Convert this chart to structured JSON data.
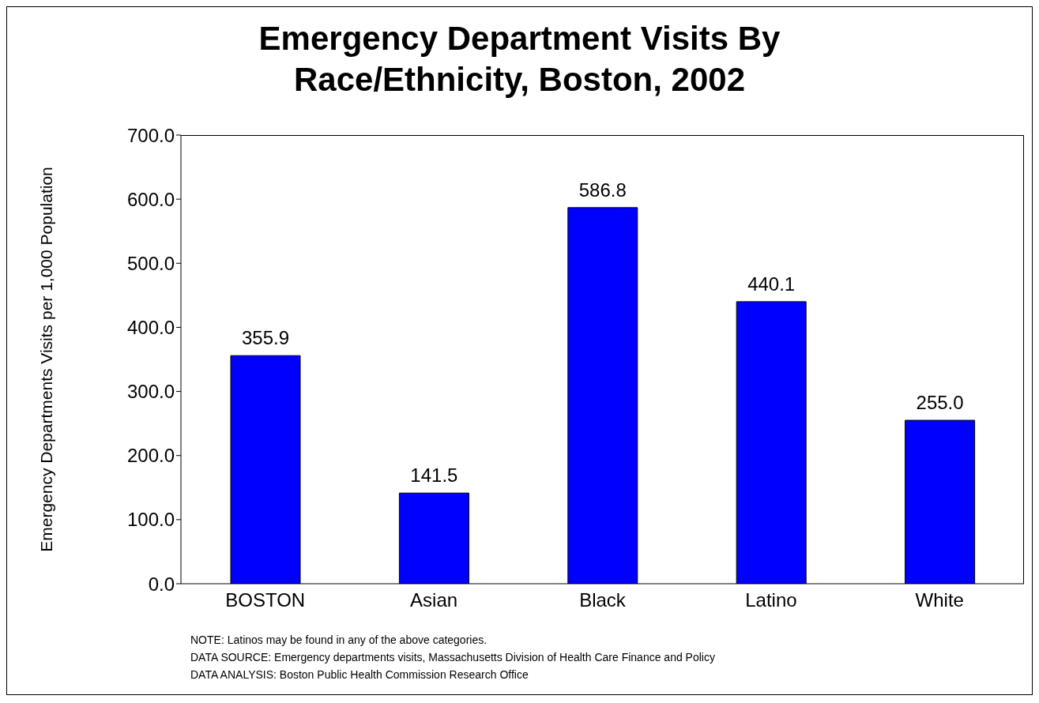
{
  "chart_data": {
    "type": "bar",
    "title": "Emergency Department Visits By Race/Ethnicity, Boston, 2002",
    "ylabel": "Emergency Departments Visits per 1,000 Population",
    "categories": [
      "BOSTON",
      "Asian",
      "Black",
      "Latino",
      "White"
    ],
    "values": [
      355.9,
      141.5,
      586.8,
      440.1,
      255.0
    ],
    "color": "#0000ff",
    "ylim": [
      0,
      700
    ],
    "yticks": [
      {
        "value": 0,
        "label": "0.0"
      },
      {
        "value": 100,
        "label": "100.0"
      },
      {
        "value": 200,
        "label": "200.0"
      },
      {
        "value": 300,
        "label": "300.0"
      },
      {
        "value": 400,
        "label": "400.0"
      },
      {
        "value": 500,
        "label": "500.0"
      },
      {
        "value": 600,
        "label": "600.0"
      },
      {
        "value": 700,
        "label": "700.0"
      }
    ],
    "value_labels": [
      "355.9",
      "141.5",
      "586.8",
      "440.1",
      "255.0"
    ],
    "annotations": [
      "NOTE:  Latinos may be found in any of the above categories.",
      "DATA SOURCE:  Emergency departments visits, Massachusetts Division of Health Care Finance and Policy",
      "DATA ANALYSIS:  Boston Public Health Commission Research Office"
    ]
  }
}
